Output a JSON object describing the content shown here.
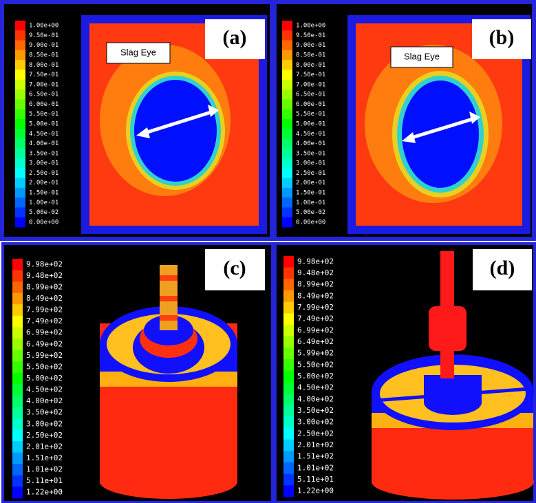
{
  "panels": [
    {
      "label": "(a)",
      "annotation": "Slag Eye",
      "colorbar": [
        "1.00e+00",
        "9.50e-01",
        "9.00e-01",
        "8.50e-01",
        "8.00e-01",
        "7.50e-01",
        "7.00e-01",
        "6.50e-01",
        "6.00e-01",
        "5.50e-01",
        "5.00e-01",
        "4.50e-01",
        "4.00e-01",
        "3.50e-01",
        "3.00e-01",
        "2.50e-01",
        "2.00e-01",
        "1.50e-01",
        "1.00e-01",
        "5.00e-02",
        "0.00e+00"
      ]
    },
    {
      "label": "(b)",
      "annotation": "Slag Eye",
      "colorbar": [
        "1.00e+00",
        "9.50e-01",
        "9.00e-01",
        "8.50e-01",
        "8.00e-01",
        "7.50e-01",
        "7.00e-01",
        "6.50e-01",
        "6.00e-01",
        "5.50e-01",
        "5.00e-01",
        "4.50e-01",
        "4.00e-01",
        "3.50e-01",
        "3.00e-01",
        "2.50e-01",
        "2.00e-01",
        "1.50e-01",
        "1.00e-01",
        "5.00e-02",
        "0.00e+00"
      ]
    },
    {
      "label": "(c)",
      "colorbar": [
        "9.98e+02",
        "9.48e+02",
        "8.99e+02",
        "8.49e+02",
        "7.99e+02",
        "7.49e+02",
        "6.99e+02",
        "6.49e+02",
        "5.99e+02",
        "5.50e+02",
        "5.00e+02",
        "4.50e+02",
        "4.00e+02",
        "3.50e+02",
        "3.00e+02",
        "2.50e+02",
        "2.01e+02",
        "1.51e+02",
        "1.01e+02",
        "5.11e+01",
        "1.22e+00"
      ]
    },
    {
      "label": "(d)",
      "colorbar": [
        "9.98e+02",
        "9.48e+02",
        "8.99e+02",
        "8.49e+02",
        "7.99e+02",
        "7.49e+02",
        "6.99e+02",
        "6.49e+02",
        "5.99e+02",
        "5.50e+02",
        "5.00e+02",
        "4.50e+02",
        "4.00e+02",
        "3.50e+02",
        "3.00e+02",
        "2.50e+02",
        "2.01e+02",
        "1.51e+02",
        "1.01e+02",
        "5.11e+01",
        "1.22e+00"
      ]
    }
  ]
}
